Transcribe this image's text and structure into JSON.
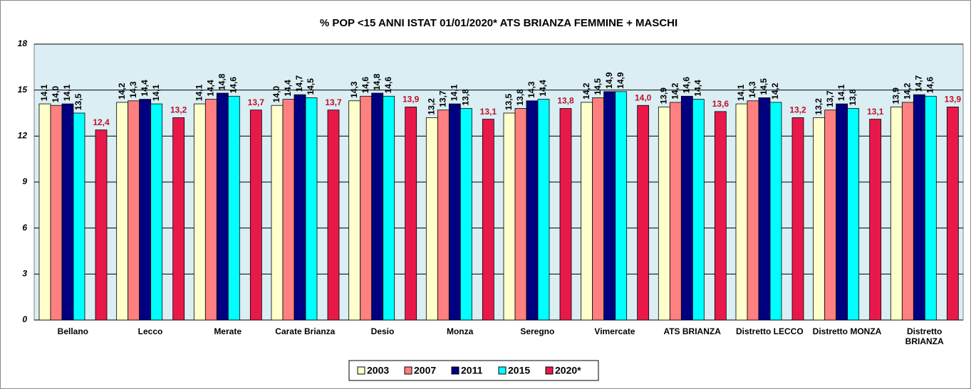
{
  "chart_data": {
    "type": "bar",
    "title": "% POP <15 ANNI ISTAT 01/01/2020*  ATS BRIANZA  FEMMINE + MASCHI",
    "categories": [
      "Bellano",
      "Lecco",
      "Merate",
      "Carate Brianza",
      "Desio",
      "Monza",
      "Seregno",
      "Vimercate",
      "ATS BRIANZA",
      "Distretto LECCO",
      "Distretto MONZA",
      "Distretto BRIANZA"
    ],
    "series": [
      {
        "name": "2003",
        "color": "#ffffcc",
        "values": [
          14.1,
          14.2,
          14.1,
          14.0,
          14.3,
          13.2,
          13.5,
          14.2,
          13.9,
          14.1,
          13.2,
          13.9
        ],
        "value_labels": [
          "14,1",
          "14,2",
          "14,1",
          "14,0",
          "14,3",
          "13,2",
          "13,5",
          "14,2",
          "13,9",
          "14,1",
          "13,2",
          "13,9"
        ]
      },
      {
        "name": "2007",
        "color": "#ff8080",
        "values": [
          14.0,
          14.3,
          14.4,
          14.4,
          14.6,
          13.7,
          13.8,
          14.5,
          14.2,
          14.3,
          13.7,
          14.2
        ],
        "value_labels": [
          "14,0",
          "14,3",
          "14,4",
          "14,4",
          "14,6",
          "13,7",
          "13,8",
          "14,5",
          "14,2",
          "14,3",
          "13,7",
          "14,2"
        ]
      },
      {
        "name": "2011",
        "color": "#000080",
        "values": [
          14.1,
          14.4,
          14.8,
          14.7,
          14.8,
          14.1,
          14.3,
          14.9,
          14.6,
          14.5,
          14.1,
          14.7
        ],
        "value_labels": [
          "14,1",
          "14,4",
          "14,8",
          "14,7",
          "14,8",
          "14,1",
          "14,3",
          "14,9",
          "14,6",
          "14,5",
          "14,1",
          "14,7"
        ]
      },
      {
        "name": "2015",
        "color": "#00ffff",
        "values": [
          13.5,
          14.1,
          14.6,
          14.5,
          14.6,
          13.8,
          14.4,
          14.9,
          14.4,
          14.2,
          13.8,
          14.6
        ],
        "value_labels": [
          "13,5",
          "14,1",
          "14,6",
          "14,5",
          "14,6",
          "13,8",
          "14,4",
          "14,9",
          "14,4",
          "14,2",
          "13,8",
          "14,6"
        ]
      },
      {
        "name": "2020*",
        "color": "#e8194a",
        "values": [
          12.4,
          13.2,
          13.7,
          13.7,
          13.9,
          13.1,
          13.8,
          14.0,
          13.6,
          13.2,
          13.1,
          13.9
        ],
        "value_labels": [
          "12,4",
          "13,2",
          "13,7",
          "13,7",
          "13,9",
          "13,1",
          "13,8",
          "14,0",
          "13,6",
          "13,2",
          "13,1",
          "13,9"
        ]
      }
    ],
    "ylim": [
      0,
      18
    ],
    "yticks": [
      0,
      3,
      6,
      9,
      12,
      15,
      18
    ],
    "grid": true,
    "legend": "bottom"
  }
}
